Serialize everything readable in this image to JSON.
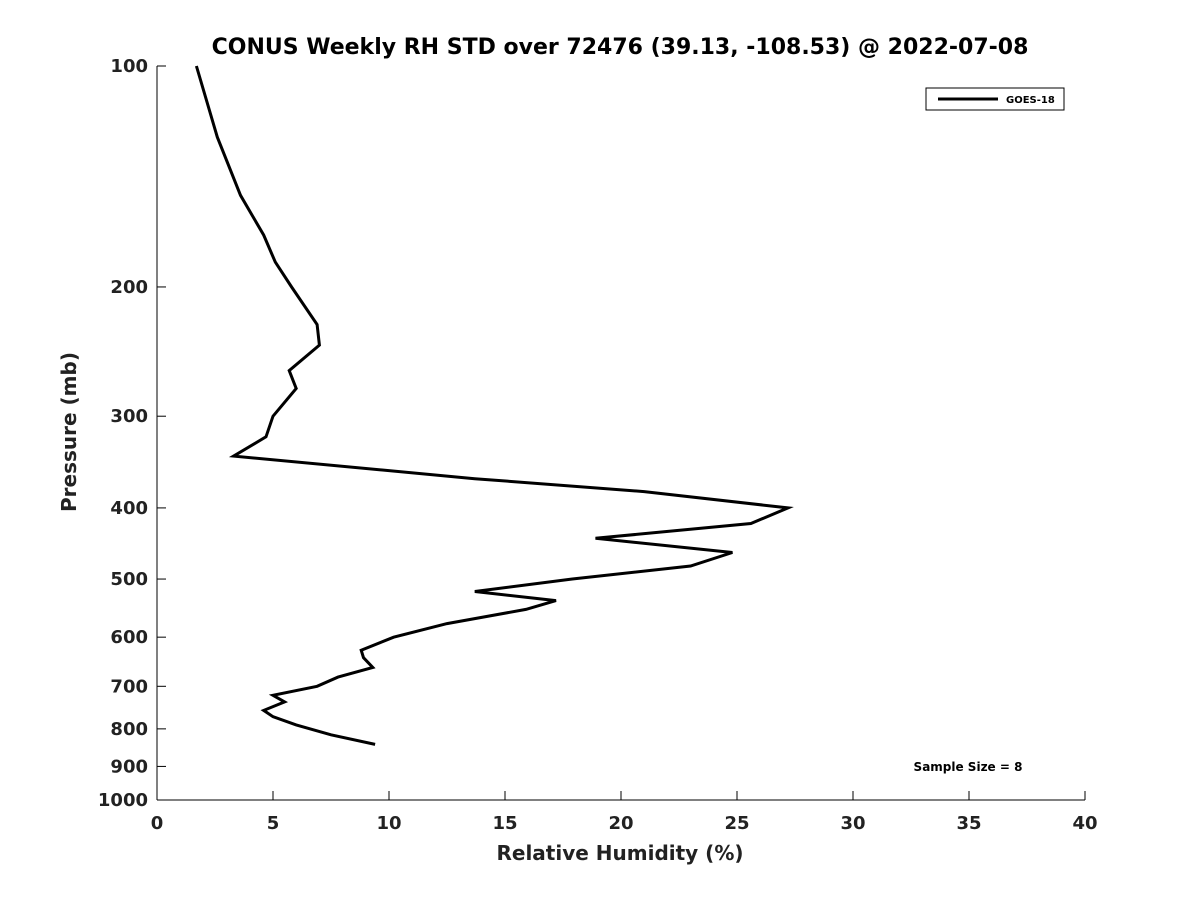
{
  "chart_data": {
    "type": "line",
    "title": "CONUS Weekly RH STD over 72476 (39.13, -108.53) @ 2022-07-08",
    "xlabel": "Relative Humidity (%)",
    "ylabel": "Pressure (mb)",
    "xlim": [
      0,
      40
    ],
    "ylim": [
      1000,
      100
    ],
    "yscale": "log",
    "y_reversed": true,
    "xticks": [
      0,
      5,
      10,
      15,
      20,
      25,
      30,
      35,
      40
    ],
    "yticks": [
      100,
      200,
      300,
      400,
      500,
      600,
      700,
      800,
      900,
      1000
    ],
    "grid": false,
    "legend_position": "top-right",
    "line_color": "#000000",
    "annotation": "Sample Size = 8",
    "series": [
      {
        "name": "GOES-18",
        "x": [
          1.7,
          2.6,
          3.6,
          4.6,
          5.1,
          5.8,
          6.9,
          7.0,
          5.7,
          6.0,
          5.0,
          4.7,
          3.3,
          13.7,
          21.0,
          27.2,
          25.6,
          18.9,
          24.8,
          23.0,
          17.9,
          13.7,
          17.2,
          15.9,
          12.5,
          10.2,
          8.8,
          8.9,
          9.3,
          7.8,
          6.9,
          5.0,
          5.5,
          4.6,
          5.0,
          6.0,
          7.5,
          9.4
        ],
        "y": [
          100,
          125,
          150,
          170,
          185,
          200,
          225,
          240,
          260,
          275,
          300,
          320,
          340,
          365,
          380,
          400,
          420,
          440,
          460,
          480,
          500,
          520,
          535,
          550,
          575,
          600,
          625,
          640,
          660,
          680,
          700,
          720,
          735,
          755,
          770,
          790,
          815,
          840
        ]
      }
    ]
  }
}
